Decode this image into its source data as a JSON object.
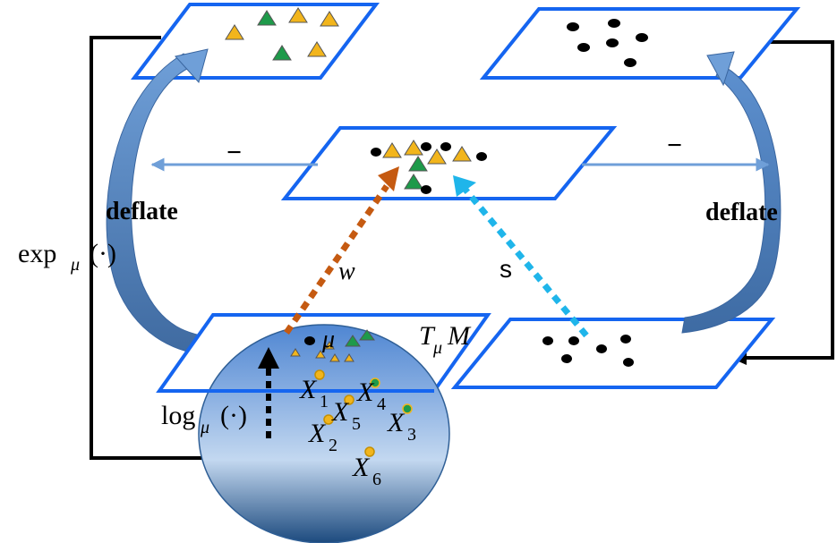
{
  "labels": {
    "deflate_left": "deflate",
    "deflate_right": "deflate",
    "minus_left": "−",
    "minus_right": "−",
    "w": "w",
    "s": "s",
    "exp_main": "exp",
    "exp_sub": "μ",
    "exp_arg": "(·)",
    "log_main": "log",
    "log_sub": "μ",
    "log_arg": "(·)",
    "mu": "μ",
    "tangent_T": "T",
    "tangent_sub": "μ",
    "tangent_M": "M",
    "points": [
      {
        "base": "X",
        "sub": "1"
      },
      {
        "base": "X",
        "sub": "4"
      },
      {
        "base": "X",
        "sub": "5"
      },
      {
        "base": "X",
        "sub": "2"
      },
      {
        "base": "X",
        "sub": "3"
      },
      {
        "base": "X",
        "sub": "6"
      }
    ]
  },
  "colors": {
    "plane_border": "#1565f0",
    "curve_fill": "#4a7fc0",
    "sphere_top": "#5b8fd6",
    "sphere_mid": "#b3cdec",
    "sphere_bottom": "#1e4e82",
    "triangle_yellow": "#f2b51c",
    "triangle_green": "#1e9a4a",
    "w_arrow": "#c55a11",
    "s_arrow": "#1fb5ea",
    "point_dot": "#000000"
  }
}
